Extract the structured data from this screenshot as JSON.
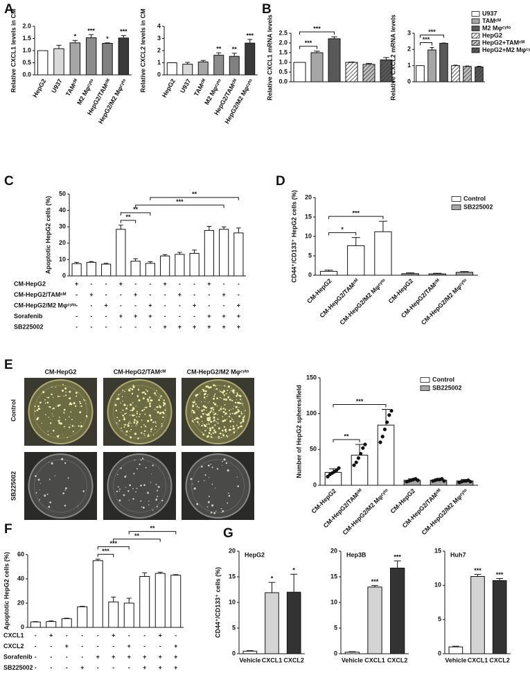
{
  "panel_labels": [
    "A",
    "B",
    "C",
    "D",
    "E",
    "F",
    "G"
  ],
  "images": {
    "columns": [
      "CM-HepG2",
      "CM-HepG2/TAMᶜᴹ",
      "CM-HepG2/M2 Mφᶜʸᵗᵒ"
    ],
    "rows": [
      "Control",
      "SB225002"
    ]
  },
  "chart_data": [
    {
      "type": "bar",
      "ylabel": "Relative CXCL1 levels in CM",
      "categories": [
        "HepG2",
        "U937",
        "TAMᶜᴹ",
        "M2 Mφᶜʸᵗᵒ",
        "HepG2/TAMᶜᴹ",
        "HepG2/M2 Mφᶜʸᵗᵒ"
      ],
      "values": [
        1.0,
        1.08,
        1.32,
        1.53,
        1.3,
        1.52
      ],
      "errors": [
        null,
        0.14,
        0.1,
        0.13,
        0.02,
        0.1
      ],
      "annotations": [
        null,
        null,
        "*",
        "***",
        "*",
        "***"
      ],
      "colors": [
        "#ffffff",
        "#d9d9d9",
        "#a6a6a6",
        "#8c8c8c",
        "#808080",
        "#3a3a3a"
      ],
      "ylim": [
        0,
        2
      ],
      "yticks": [
        {
          "value": 0,
          "label": "0.0"
        },
        0.5,
        {
          "value": 1,
          "label": "1.0"
        },
        1.5,
        {
          "value": 2,
          "label": "2.0"
        }
      ]
    },
    {
      "type": "bar",
      "ylabel": "Relative CXCL2 levels in CM",
      "categories": [
        "HepG2",
        "U937",
        "TAMᶜᴹ",
        "M2 Mφᶜʸᵗᵒ",
        "HepG2/TAMᶜᴹ",
        "HepG2/M2 Mφᶜʸᵗᵒ"
      ],
      "values": [
        1.0,
        0.88,
        1.07,
        1.62,
        1.53,
        2.62
      ],
      "errors": [
        null,
        0.15,
        0.12,
        0.2,
        0.25,
        0.3
      ],
      "annotations": [
        null,
        null,
        null,
        "**",
        "**",
        "***"
      ],
      "colors": [
        "#ffffff",
        "#d9d9d9",
        "#a6a6a6",
        "#8c8c8c",
        "#808080",
        "#3a3a3a"
      ],
      "ylim": [
        0,
        4
      ],
      "yticks": [
        0,
        1,
        2,
        3,
        4
      ]
    },
    {
      "type": "bar",
      "ylabel": "Relative CXCL1 mRNA levels",
      "values": [
        1.0,
        1.5,
        2.22,
        1.0,
        0.9,
        1.13
      ],
      "errors": [
        null,
        0.08,
        0.1,
        0.02,
        0.05,
        0.12
      ],
      "colors": [
        "#ffffff",
        "#a6a6a6",
        "#595959",
        "#ffffff",
        "#bfbfbf",
        "#595959"
      ],
      "hatched": [
        false,
        false,
        false,
        true,
        true,
        true
      ],
      "brackets": [
        {
          "from": 0,
          "to": 1,
          "label": "***"
        },
        {
          "from": 0,
          "to": 2,
          "label": "***"
        }
      ],
      "ylim": [
        0,
        2.5
      ],
      "yticks": [
        {
          "value": 0,
          "label": "0.0"
        },
        0.5,
        {
          "value": 1,
          "label": "1.0"
        },
        1.5,
        {
          "value": 2,
          "label": "2.0"
        },
        2.5
      ]
    },
    {
      "type": "bar",
      "ylabel": "Relative CXCL2 mRNA levels",
      "legend": "upper right",
      "categories": [
        "U937",
        "TAMᶜᴹ",
        "M2 Mφᶜʸᵗᵒ",
        "HepG2",
        "HepG2+TAMᶜᴹ",
        "HepG2+M2 Mφᶜʸᵗᵒ"
      ],
      "values": [
        1.0,
        1.97,
        2.38,
        1.0,
        0.95,
        0.92
      ],
      "errors": [
        null,
        0.15,
        0.02,
        0.03,
        0.03,
        0.04
      ],
      "colors": [
        "#ffffff",
        "#a6a6a6",
        "#595959",
        "#ffffff",
        "#bfbfbf",
        "#595959"
      ],
      "hatched": [
        false,
        false,
        false,
        true,
        true,
        true
      ],
      "brackets": [
        {
          "from": 0,
          "to": 1,
          "label": "***"
        },
        {
          "from": 0,
          "to": 2,
          "label": "***"
        }
      ],
      "ylim": [
        0,
        3
      ],
      "yticks": [
        0,
        1,
        2,
        3
      ]
    },
    {
      "type": "bar",
      "ylabel": "Apoptotic HepG2 cells (%)",
      "values": [
        7.5,
        8.3,
        7.2,
        28.5,
        9.0,
        7.7,
        12.2,
        13.2,
        13.8,
        27.8,
        28.5,
        26.3
      ],
      "errors": [
        0.8,
        0.5,
        0.5,
        2.5,
        1.5,
        1.0,
        0.8,
        1.2,
        2.0,
        2.5,
        1.5,
        3.0
      ],
      "colors": [
        "#ffffff",
        "#ffffff",
        "#ffffff",
        "#ffffff",
        "#ffffff",
        "#ffffff",
        "#ffffff",
        "#ffffff",
        "#ffffff",
        "#ffffff",
        "#ffffff",
        "#ffffff"
      ],
      "brackets": [
        {
          "from": 3,
          "to": 4,
          "label": "**"
        },
        {
          "from": 3,
          "to": 5,
          "label": "**"
        },
        {
          "from": 4,
          "to": 10,
          "label": "***"
        },
        {
          "from": 5,
          "to": 11,
          "label": "**"
        }
      ],
      "conditions": [
        {
          "name": "CM-HepG2",
          "marks": [
            "+",
            "-",
            "-",
            "+",
            "-",
            "-",
            "+",
            "-",
            "-",
            "+",
            "-",
            "-"
          ]
        },
        {
          "name": "CM-HepG2/TAMᶜᴹ",
          "marks": [
            "-",
            "+",
            "-",
            "-",
            "+",
            "-",
            "-",
            "+",
            "-",
            "-",
            "+",
            "-"
          ]
        },
        {
          "name": "CM-HepG2/M2 Mφᶜʸᵗᵒ",
          "marks": [
            "-",
            "-",
            "+",
            "-",
            "-",
            "+",
            "-",
            "-",
            "+",
            "-",
            "-",
            "+"
          ]
        },
        {
          "name": "Sorafenib",
          "marks": [
            "-",
            "-",
            "-",
            "+",
            "+",
            "+",
            "-",
            "-",
            "-",
            "+",
            "+",
            "+"
          ]
        },
        {
          "name": "SB225002",
          "marks": [
            "-",
            "-",
            "-",
            "-",
            "-",
            "-",
            "+",
            "+",
            "+",
            "+",
            "+",
            "+"
          ]
        }
      ],
      "ylim": [
        0,
        50
      ],
      "yticks": [
        0,
        10,
        20,
        30,
        40,
        50
      ]
    },
    {
      "type": "bar",
      "ylabel": "CD44⁺/CD133⁺ HepG2 cells (%)",
      "legend": "upper right",
      "categories": [
        "CM-HepG2",
        "CM-HepG2/TAMᶜᴹ",
        "CM-HepG2/M2 Mφᶜʸᵗᵒ",
        "CM-HepG2",
        "CM-HepG2/TAMᶜᴹ",
        "CM-HepG2/M2 Mφᶜʸᵗᵒ"
      ],
      "series": [
        {
          "name": "Control",
          "color": "#ffffff",
          "values": [
            1.0,
            7.6,
            11.2,
            null,
            null,
            null
          ],
          "errors": [
            0.3,
            2.1,
            2.7,
            null,
            null,
            null
          ]
        },
        {
          "name": "SB225002",
          "color": "#a6a6a6",
          "values": [
            null,
            null,
            null,
            0.4,
            0.35,
            0.75
          ],
          "errors": [
            null,
            null,
            null,
            0.2,
            0.15,
            0.2
          ]
        }
      ],
      "brackets": [
        {
          "from": 0,
          "to": 1,
          "label": "*"
        },
        {
          "from": 0,
          "to": 2,
          "label": "***"
        }
      ],
      "ylim": [
        0,
        20
      ],
      "yticks": [
        0,
        5,
        10,
        15,
        20
      ]
    },
    {
      "type": "bar",
      "ylabel": "Number of HepG2 spheres/field",
      "legend": "upper right",
      "categories": [
        "CM-HepG2",
        "CM-HepG2/TAMᶜᴹ",
        "CM-HepG2/M2 Mφᶜʸᵗᵒ",
        "CM-HepG2",
        "CM-HepG2/TAMᶜᴹ",
        "CM-HepG2/M2 Mφᶜʸᵗᵒ"
      ],
      "series": [
        {
          "name": "Control",
          "color": "#ffffff",
          "values": [
            18,
            42,
            84,
            null,
            null,
            null
          ],
          "errors": [
            5,
            15,
            22,
            null,
            null,
            null
          ],
          "points": [
            [
              12,
              15,
              17,
              19,
              21,
              24
            ],
            [
              28,
              32,
              38,
              44,
              52,
              57
            ],
            [
              60,
              68,
              78,
              88,
              98,
              104
            ],
            null,
            null,
            null
          ]
        },
        {
          "name": "SB225002",
          "color": "#a6a6a6",
          "values": [
            null,
            null,
            null,
            7,
            7,
            6
          ],
          "errors": [
            null,
            null,
            null,
            2,
            2,
            2
          ],
          "points": [
            null,
            null,
            null,
            [
              5,
              6,
              7,
              8,
              9,
              7
            ],
            [
              6,
              7,
              8,
              8,
              9,
              6
            ],
            [
              4,
              5,
              6,
              6,
              7,
              5
            ]
          ]
        }
      ],
      "brackets": [
        {
          "from": 0,
          "to": 1,
          "label": "**"
        },
        {
          "from": 0,
          "to": 2,
          "label": "***"
        }
      ],
      "ylim": [
        0,
        150
      ],
      "yticks": [
        0,
        50,
        100,
        150
      ]
    },
    {
      "type": "bar",
      "ylabel": "Apoptotic HepG2 cells (%)",
      "values": [
        4.5,
        4.8,
        7.2,
        17,
        55,
        21,
        20,
        42,
        44.5,
        43
      ],
      "errors": [
        0.3,
        0.5,
        0.4,
        0.4,
        1.2,
        4,
        4,
        3,
        1,
        0.5
      ],
      "colors": [
        "#ffffff",
        "#ffffff",
        "#ffffff",
        "#ffffff",
        "#ffffff",
        "#ffffff",
        "#ffffff",
        "#ffffff",
        "#ffffff",
        "#ffffff"
      ],
      "brackets": [
        {
          "from": 4,
          "to": 5,
          "label": "***"
        },
        {
          "from": 4,
          "to": 6,
          "label": "***"
        },
        {
          "from": 5,
          "to": 8,
          "label": "**"
        },
        {
          "from": 6,
          "to": 9,
          "label": "**"
        }
      ],
      "conditions": [
        {
          "name": "CXCL1",
          "marks": [
            "-",
            "+",
            "-",
            "-",
            "-",
            "+",
            "-",
            "-",
            "+",
            "-"
          ]
        },
        {
          "name": "CXCL2",
          "marks": [
            "-",
            "-",
            "+",
            "-",
            "-",
            "-",
            "+",
            "-",
            "-",
            "+"
          ]
        },
        {
          "name": "Sorafenib",
          "marks": [
            "-",
            "-",
            "-",
            "-",
            "+",
            "+",
            "+",
            "+",
            "+",
            "+"
          ]
        },
        {
          "name": "SB225002",
          "marks": [
            "-",
            "-",
            "-",
            "+",
            "-",
            "-",
            "-",
            "+",
            "+",
            "+"
          ]
        }
      ],
      "ylim": [
        0,
        60
      ],
      "yticks": [
        0,
        20,
        40,
        60
      ]
    },
    {
      "type": "bar",
      "title": "HepG2",
      "ylabel": "CD44⁺/CD133⁺ cells (%)",
      "categories": [
        "Vehicle",
        "CXCL1",
        "CXCL2"
      ],
      "values": [
        0.5,
        11.9,
        12.0
      ],
      "errors": [
        0.1,
        2.0,
        3.5
      ],
      "annotations": [
        null,
        "*",
        "*"
      ],
      "colors": [
        "#ffffff",
        "#d4d4d4",
        "#333333"
      ],
      "ylim": [
        0,
        20
      ],
      "yticks": [
        0,
        5,
        10,
        15,
        20
      ]
    },
    {
      "type": "bar",
      "title": "Hep3B",
      "categories": [
        "Vehicle",
        "CXCL1",
        "CXCL2"
      ],
      "values": [
        0.3,
        13.0,
        16.7
      ],
      "errors": [
        0.1,
        0.3,
        1.4
      ],
      "annotations": [
        null,
        "***",
        "***"
      ],
      "colors": [
        "#ffffff",
        "#d4d4d4",
        "#333333"
      ],
      "ylim": [
        0,
        20
      ],
      "yticks": [
        0,
        5,
        10,
        15,
        20
      ]
    },
    {
      "type": "bar",
      "title": "Huh7",
      "categories": [
        "Vehicle",
        "CXCL1",
        "CXCL2"
      ],
      "values": [
        1.0,
        11.3,
        10.7
      ],
      "errors": [
        0.1,
        0.3,
        0.3
      ],
      "annotations": [
        null,
        "***",
        "***"
      ],
      "colors": [
        "#ffffff",
        "#d4d4d4",
        "#333333"
      ],
      "ylim": [
        0,
        15
      ],
      "yticks": [
        0,
        5,
        10,
        15
      ]
    }
  ]
}
